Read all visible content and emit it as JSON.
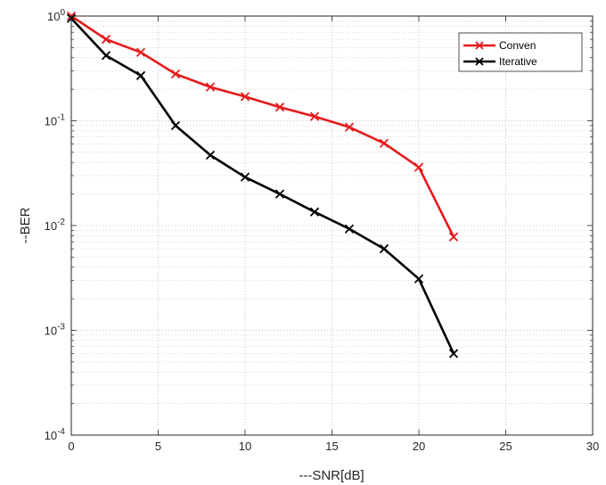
{
  "chart_data": {
    "type": "line",
    "title": "",
    "xlabel": "---SNR[dB]",
    "ylabel": "--BER",
    "xlim": [
      0,
      30
    ],
    "ylim": [
      0.0001,
      1
    ],
    "yscale": "log",
    "xticks": [
      0,
      5,
      10,
      15,
      20,
      25,
      30
    ],
    "xtick_labels": [
      "0",
      "5",
      "10",
      "15",
      "20",
      "25",
      "30"
    ],
    "yticks": [
      {
        "value": 1,
        "base": "10",
        "exp": "0"
      },
      {
        "value": 0.1,
        "base": "10",
        "exp": "-1"
      },
      {
        "value": 0.01,
        "base": "10",
        "exp": "-2"
      },
      {
        "value": 0.001,
        "base": "10",
        "exp": "-3"
      },
      {
        "value": 0.0001,
        "base": "10",
        "exp": "-4"
      }
    ],
    "grid": true,
    "legend_position": "top-right",
    "series": [
      {
        "name": "Conven",
        "color": "#e41a1c",
        "marker": "x",
        "x": [
          0,
          2,
          4,
          6,
          8,
          10,
          12,
          14,
          16,
          18,
          20,
          22
        ],
        "y": [
          1.0,
          0.6,
          0.45,
          0.28,
          0.21,
          0.17,
          0.135,
          0.11,
          0.087,
          0.061,
          0.036,
          0.0078
        ]
      },
      {
        "name": "Iterative",
        "color": "#000000",
        "marker": "x",
        "x": [
          0,
          2,
          4,
          6,
          8,
          10,
          12,
          14,
          16,
          18,
          20,
          22
        ],
        "y": [
          0.95,
          0.42,
          0.27,
          0.09,
          0.047,
          0.029,
          0.02,
          0.0135,
          0.0093,
          0.006,
          0.0031,
          0.0006
        ]
      }
    ]
  }
}
